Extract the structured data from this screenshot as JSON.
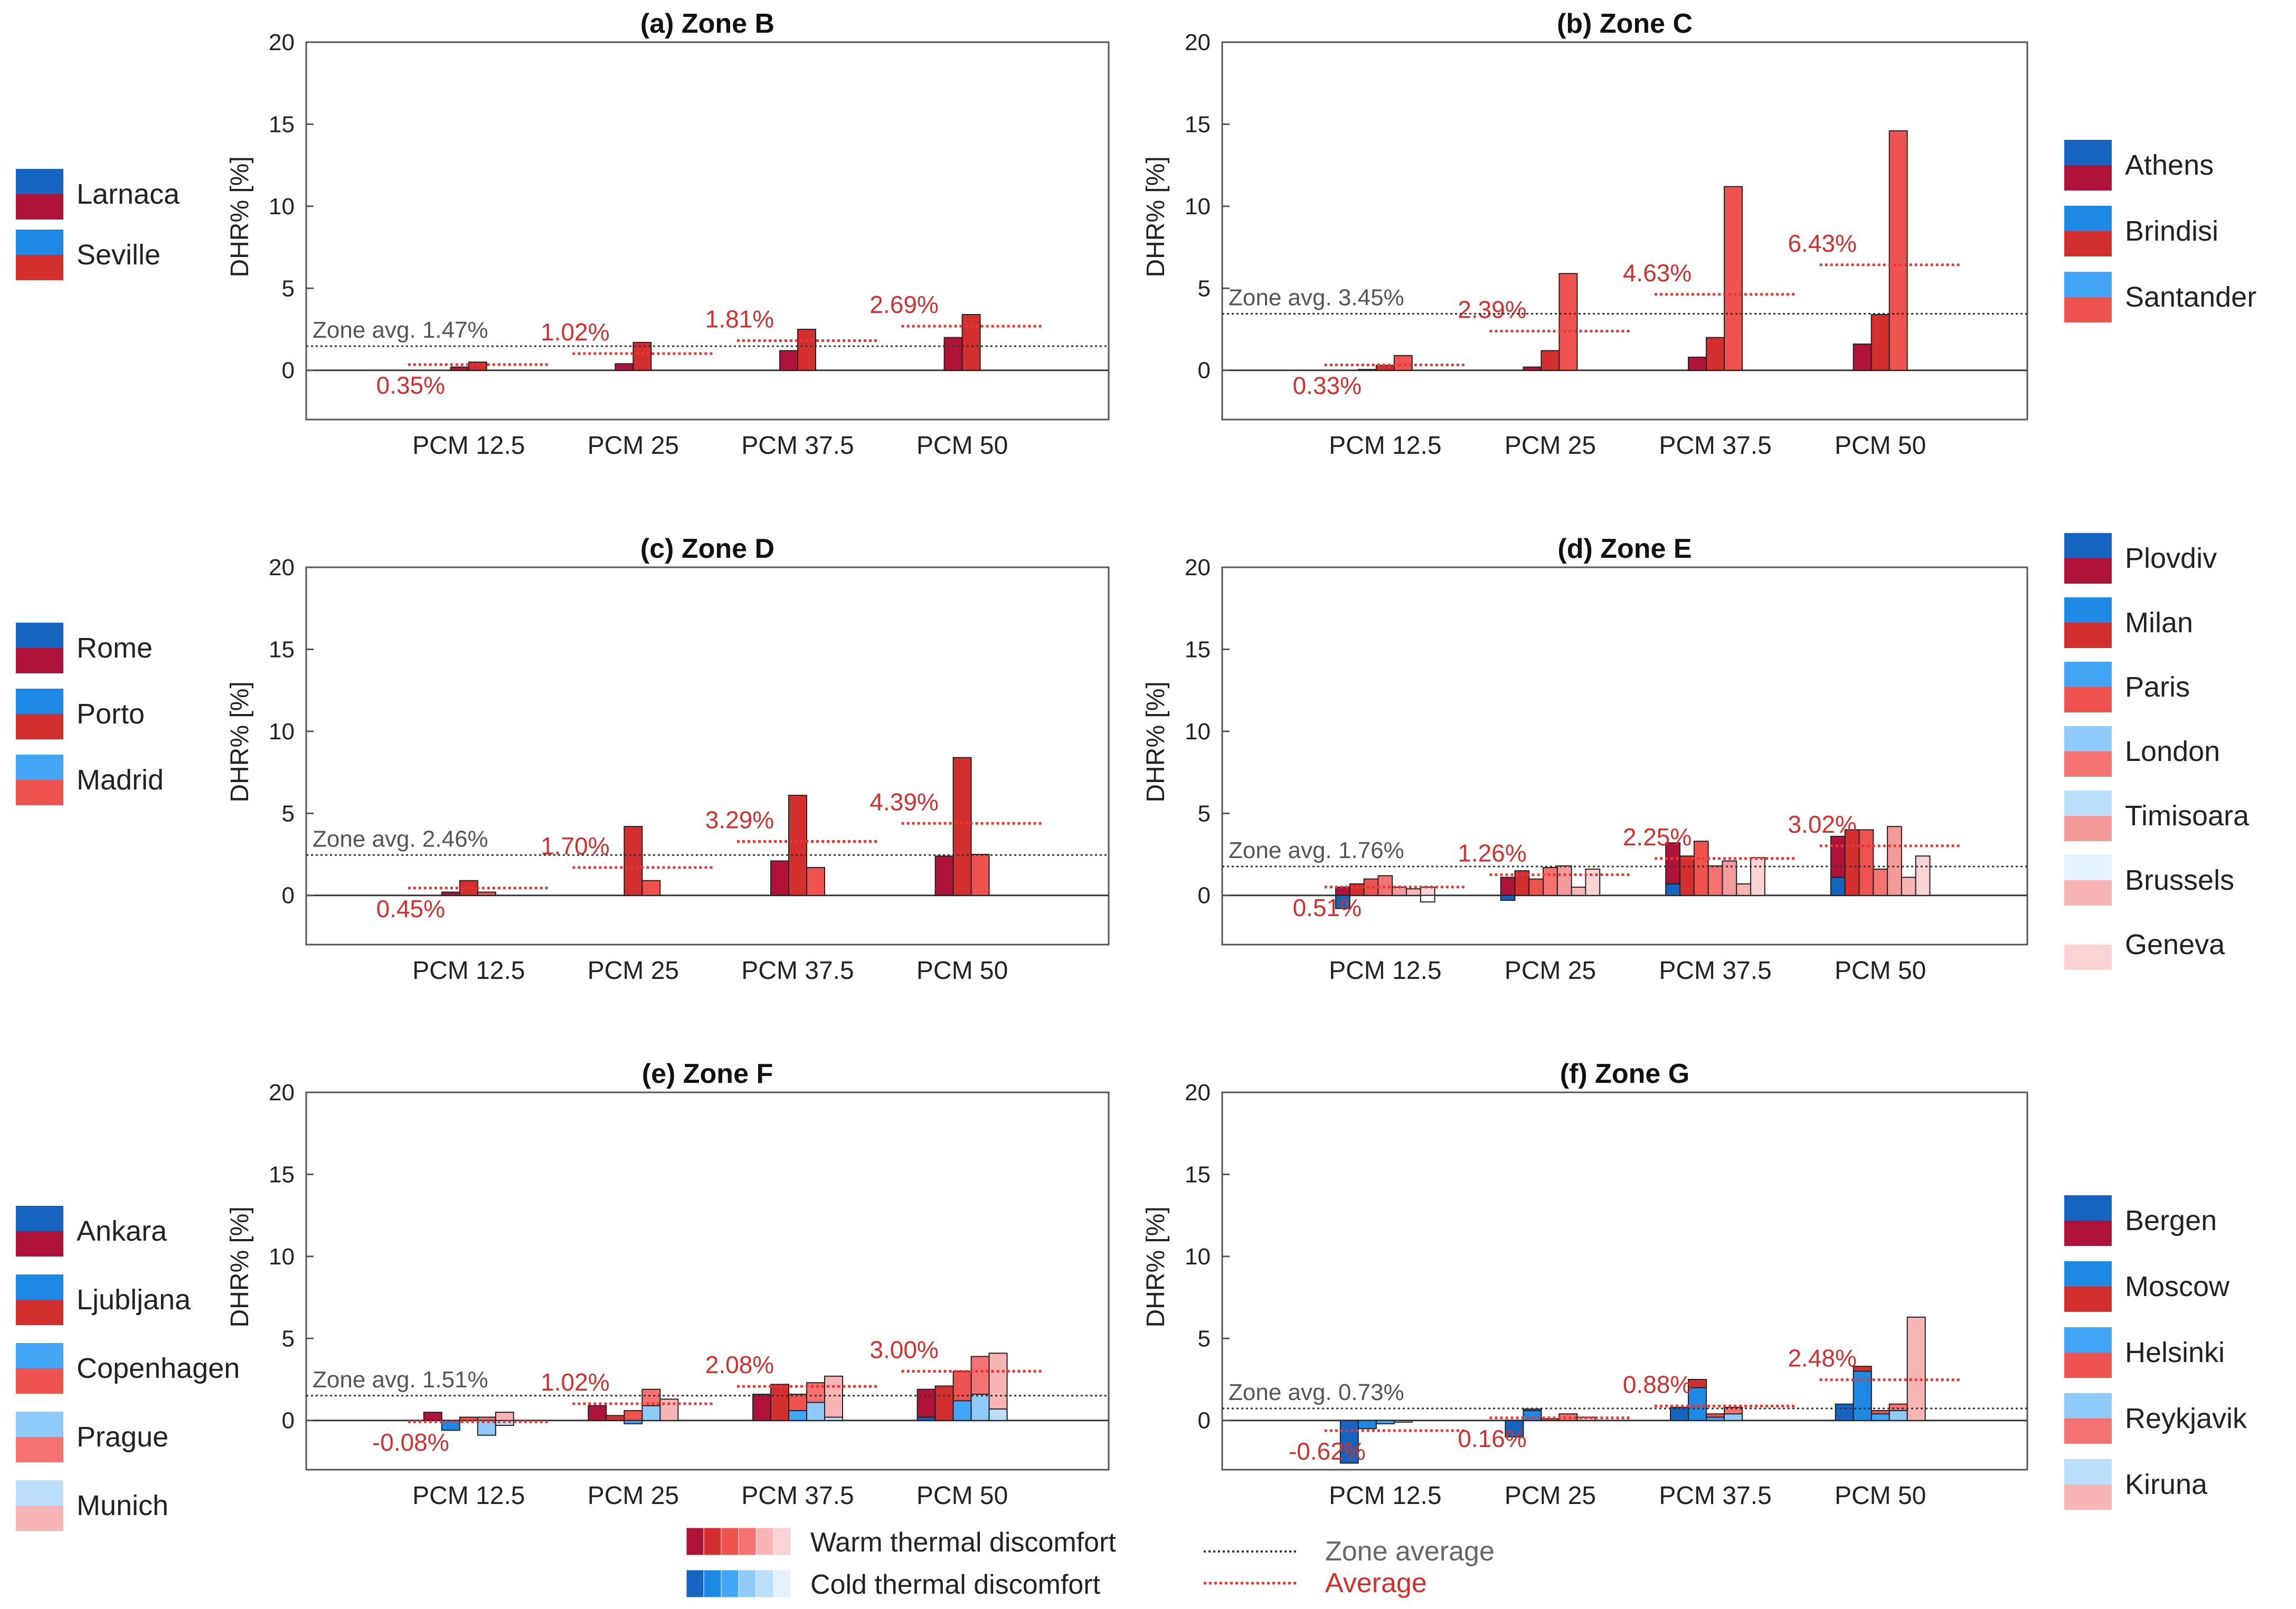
{
  "chart_data": [
    {
      "type": "bar",
      "title": "(a) Zone B",
      "ylabel": "DHR% [%]",
      "ylim": [
        -3,
        20
      ],
      "yticks": [
        0,
        5,
        10,
        15,
        20
      ],
      "categories": [
        "PCM 12.5",
        "PCM 25",
        "PCM 37.5",
        "PCM 50"
      ],
      "series": [
        {
          "name": "Larnaca",
          "cold_color": "#1565c0",
          "warm_color": "#b0133a",
          "warm": [
            0.2,
            0.4,
            1.2,
            2.0
          ],
          "cold": [
            0,
            0,
            0,
            0
          ]
        },
        {
          "name": "Seville",
          "cold_color": "#1e88e5",
          "warm_color": "#d32f2f",
          "warm": [
            0.5,
            1.7,
            2.5,
            3.4
          ],
          "cold": [
            0,
            0,
            0,
            0
          ]
        }
      ],
      "averages": [
        0.35,
        1.02,
        1.81,
        2.69
      ],
      "average_labels": [
        "0.35%",
        "1.02%",
        "1.81%",
        "2.69%"
      ],
      "zone_avg": 1.47,
      "zone_avg_label": "Zone avg. 1.47%"
    },
    {
      "type": "bar",
      "title": "(b) Zone C",
      "ylabel": "DHR% [%]",
      "ylim": [
        -3,
        20
      ],
      "yticks": [
        0,
        5,
        10,
        15,
        20
      ],
      "categories": [
        "PCM 12.5",
        "PCM 25",
        "PCM 37.5",
        "PCM 50"
      ],
      "series": [
        {
          "name": "Athens",
          "cold_color": "#1565c0",
          "warm_color": "#b0133a",
          "warm": [
            0.05,
            0.2,
            0.8,
            1.6
          ],
          "cold": [
            0,
            0,
            0,
            0
          ]
        },
        {
          "name": "Brindisi",
          "cold_color": "#1e88e5",
          "warm_color": "#d32f2f",
          "warm": [
            0.3,
            1.2,
            2.0,
            3.4
          ],
          "cold": [
            0,
            0,
            0,
            0
          ]
        },
        {
          "name": "Santander",
          "cold_color": "#42a5f5",
          "warm_color": "#ef5350",
          "warm": [
            0.9,
            5.9,
            11.2,
            14.6
          ],
          "cold": [
            0,
            0,
            0,
            0
          ]
        }
      ],
      "averages": [
        0.33,
        2.39,
        4.63,
        6.43
      ],
      "average_labels": [
        "0.33%",
        "2.39%",
        "4.63%",
        "6.43%"
      ],
      "zone_avg": 3.45,
      "zone_avg_label": "Zone avg. 3.45%"
    },
    {
      "type": "bar",
      "title": "(c) Zone D",
      "ylabel": "DHR% [%]",
      "ylim": [
        -3,
        20
      ],
      "yticks": [
        0,
        5,
        10,
        15,
        20
      ],
      "categories": [
        "PCM 12.5",
        "PCM 25",
        "PCM 37.5",
        "PCM 50"
      ],
      "series": [
        {
          "name": "Rome",
          "cold_color": "#1565c0",
          "warm_color": "#b0133a",
          "warm": [
            0.2,
            0.0,
            2.1,
            2.4
          ],
          "cold": [
            0,
            0,
            0,
            0
          ]
        },
        {
          "name": "Porto",
          "cold_color": "#1e88e5",
          "warm_color": "#d32f2f",
          "warm": [
            0.9,
            4.2,
            6.1,
            8.4
          ],
          "cold": [
            0,
            0,
            0,
            0
          ]
        },
        {
          "name": "Madrid",
          "cold_color": "#42a5f5",
          "warm_color": "#ef5350",
          "warm": [
            0.2,
            0.9,
            1.7,
            2.5
          ],
          "cold": [
            0,
            0,
            0,
            0
          ]
        }
      ],
      "averages": [
        0.45,
        1.7,
        3.29,
        4.39
      ],
      "average_labels": [
        "0.45%",
        "1.70%",
        "3.29%",
        "4.39%"
      ],
      "zone_avg": 2.46,
      "zone_avg_label": "Zone avg. 2.46%"
    },
    {
      "type": "bar",
      "title": "(d) Zone E",
      "ylabel": "DHR% [%]",
      "ylim": [
        -3,
        20
      ],
      "yticks": [
        0,
        5,
        10,
        15,
        20
      ],
      "categories": [
        "PCM 12.5",
        "PCM 25",
        "PCM 37.5",
        "PCM 50"
      ],
      "series": [
        {
          "name": "Plovdiv",
          "cold_color": "#1565c0",
          "warm_color": "#b0133a",
          "warm": [
            0.5,
            1.1,
            3.2,
            3.6
          ],
          "cold": [
            -0.8,
            -0.3,
            0.7,
            1.1
          ]
        },
        {
          "name": "Milan",
          "cold_color": "#1e88e5",
          "warm_color": "#d32f2f",
          "warm": [
            0.7,
            1.5,
            2.4,
            4.0
          ],
          "cold": [
            0,
            0,
            0,
            0
          ]
        },
        {
          "name": "Paris",
          "cold_color": "#42a5f5",
          "warm_color": "#ef5350",
          "warm": [
            1.0,
            1.0,
            3.3,
            4.0
          ],
          "cold": [
            0,
            0,
            0,
            0
          ]
        },
        {
          "name": "London",
          "cold_color": "#90caf9",
          "warm_color": "#f47272",
          "warm": [
            1.2,
            1.7,
            1.8,
            1.6
          ],
          "cold": [
            0,
            0,
            0,
            0
          ]
        },
        {
          "name": "Timisoara",
          "cold_color": "#bbdefb",
          "warm_color": "#f59a9a",
          "warm": [
            0.5,
            1.8,
            2.1,
            4.2
          ],
          "cold": [
            0,
            0,
            0,
            0
          ]
        },
        {
          "name": "Brussels",
          "cold_color": "#e3f2fd",
          "warm_color": "#f7b5b5",
          "warm": [
            0.4,
            0.5,
            0.7,
            1.1
          ],
          "cold": [
            0,
            0,
            0,
            0
          ]
        },
        {
          "name": "Geneva",
          "cold_color": "#ffffff",
          "warm_color": "#fad4d4",
          "warm": [
            0.5,
            1.6,
            2.3,
            2.4
          ],
          "cold": [
            -0.4,
            0,
            0,
            0
          ]
        }
      ],
      "averages": [
        0.51,
        1.26,
        2.25,
        3.02
      ],
      "average_labels": [
        "0.51%",
        "1.26%",
        "2.25%",
        "3.02%"
      ],
      "zone_avg": 1.76,
      "zone_avg_label": "Zone avg. 1.76%"
    },
    {
      "type": "bar",
      "title": "(e) Zone F",
      "ylabel": "DHR% [%]",
      "ylim": [
        -3,
        20
      ],
      "yticks": [
        0,
        5,
        10,
        15,
        20
      ],
      "categories": [
        "PCM 12.5",
        "PCM 25",
        "PCM 37.5",
        "PCM 50"
      ],
      "series": [
        {
          "name": "Ankara",
          "cold_color": "#1565c0",
          "warm_color": "#b0133a",
          "warm": [
            0.5,
            0.9,
            1.6,
            1.9
          ],
          "cold": [
            0,
            0,
            0,
            0.2
          ]
        },
        {
          "name": "Ljubljana",
          "cold_color": "#1e88e5",
          "warm_color": "#d32f2f",
          "warm": [
            0.0,
            0.3,
            2.2,
            2.1
          ],
          "cold": [
            -0.6,
            0,
            0,
            0
          ]
        },
        {
          "name": "Copenhagen",
          "cold_color": "#42a5f5",
          "warm_color": "#ef5350",
          "warm": [
            0.2,
            0.6,
            1.6,
            3.0
          ],
          "cold": [
            0,
            -0.2,
            0.6,
            1.2
          ]
        },
        {
          "name": "Prague",
          "cold_color": "#90caf9",
          "warm_color": "#f47272",
          "warm": [
            0.2,
            1.9,
            2.3,
            3.9
          ],
          "cold": [
            -0.9,
            0.9,
            1.1,
            1.6
          ]
        },
        {
          "name": "Munich",
          "cold_color": "#bbdefb",
          "warm_color": "#f7b5b5",
          "warm": [
            0.5,
            1.3,
            2.7,
            4.1
          ],
          "cold": [
            -0.3,
            0,
            0.2,
            0.7
          ]
        }
      ],
      "averages": [
        -0.08,
        1.02,
        2.08,
        3.0
      ],
      "average_labels": [
        "-0.08%",
        "1.02%",
        "2.08%",
        "3.00%"
      ],
      "zone_avg": 1.51,
      "zone_avg_label": "Zone avg. 1.51%"
    },
    {
      "type": "bar",
      "title": "(f) Zone G",
      "ylabel": "DHR% [%]",
      "ylim": [
        -3,
        20
      ],
      "yticks": [
        0,
        5,
        10,
        15,
        20
      ],
      "categories": [
        "PCM 12.5",
        "PCM 25",
        "PCM 37.5",
        "PCM 50"
      ],
      "series": [
        {
          "name": "Bergen",
          "cold_color": "#1565c0",
          "warm_color": "#b0133a",
          "warm": [
            0.0,
            0.0,
            0.0,
            0.0
          ],
          "cold": [
            -2.6,
            -1.0,
            0.8,
            1.0
          ]
        },
        {
          "name": "Moscow",
          "cold_color": "#1e88e5",
          "warm_color": "#d32f2f",
          "warm": [
            0.0,
            0.7,
            2.5,
            3.3
          ],
          "cold": [
            -0.5,
            0.6,
            2.0,
            3.0
          ]
        },
        {
          "name": "Helsinki",
          "cold_color": "#42a5f5",
          "warm_color": "#ef5350",
          "warm": [
            0.0,
            0.1,
            0.4,
            0.6
          ],
          "cold": [
            -0.2,
            0,
            0.2,
            0.4
          ]
        },
        {
          "name": "Reykjavik",
          "cold_color": "#90caf9",
          "warm_color": "#f47272",
          "warm": [
            0.0,
            0.4,
            0.8,
            1.0
          ],
          "cold": [
            -0.1,
            0,
            0.4,
            0.6
          ]
        },
        {
          "name": "Kiruna",
          "cold_color": "#bbdefb",
          "warm_color": "#f7b5b5",
          "warm": [
            0.0,
            0.2,
            0.0,
            6.3
          ],
          "cold": [
            0,
            0,
            0,
            0
          ]
        }
      ],
      "averages": [
        -0.62,
        0.16,
        0.88,
        2.48
      ],
      "average_labels": [
        "-0.62%",
        "0.16%",
        "0.88%",
        "2.48%"
      ],
      "zone_avg": 0.73,
      "zone_avg_label": "Zone avg. 0.73%"
    }
  ],
  "legend_bottom": {
    "warm_label": "Warm thermal discomfort",
    "cold_label": "Cold thermal discomfort",
    "zone_avg_label": "Zone average",
    "avg_label": "Average",
    "warm_swatches": [
      "#b0133a",
      "#d32f2f",
      "#ef5350",
      "#f47272",
      "#f7b5b5",
      "#fad4d4"
    ],
    "cold_swatches": [
      "#1565c0",
      "#1e88e5",
      "#42a5f5",
      "#90caf9",
      "#bbdefb",
      "#e3f2fd"
    ]
  }
}
